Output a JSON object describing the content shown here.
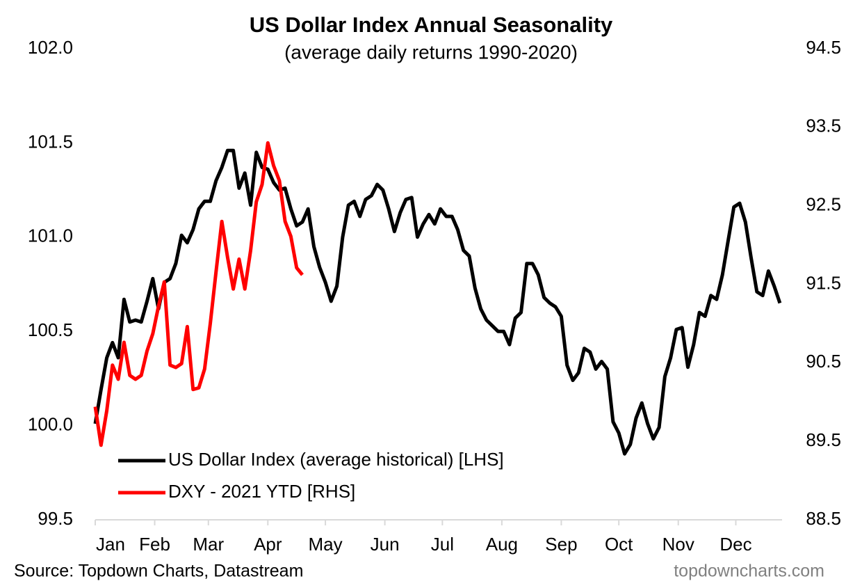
{
  "chart_data": {
    "type": "line",
    "title": "US Dollar Index Annual Seasonality",
    "subtitle": "(average daily returns 1990-2020)",
    "source": "Source: Topdown Charts, Datastream",
    "watermark": "topdowncharts.com",
    "legend": "lower left",
    "xlim": [
      0,
      365
    ],
    "xticks": [
      {
        "value": 0,
        "label": "Jan"
      },
      {
        "value": 31,
        "label": "Feb"
      },
      {
        "value": 59,
        "label": "Mar"
      },
      {
        "value": 90,
        "label": "Apr"
      },
      {
        "value": 120,
        "label": "May"
      },
      {
        "value": 151,
        "label": "Jun"
      },
      {
        "value": 181,
        "label": "Jul"
      },
      {
        "value": 212,
        "label": "Aug"
      },
      {
        "value": 243,
        "label": "Sep"
      },
      {
        "value": 273,
        "label": "Oct"
      },
      {
        "value": 304,
        "label": "Nov"
      },
      {
        "value": 334,
        "label": "Dec"
      }
    ],
    "ylim": [
      99.5,
      102.0
    ],
    "yticks": [
      99.5,
      {
        "value": 100,
        "label": "100.0"
      },
      100.5,
      {
        "value": 101,
        "label": "101.0"
      },
      101.5,
      {
        "value": 102,
        "label": "102.0"
      }
    ],
    "y2lim": [
      88.5,
      94.5
    ],
    "y2ticks": [
      88.5,
      89.5,
      90.5,
      91.5,
      92.5,
      93.5,
      94.5
    ],
    "series": [
      {
        "name": "US Dollar Index (average historical) [LHS]",
        "color": "#000000",
        "axis": "y",
        "x": [
          0,
          3,
          6,
          9,
          12,
          15,
          18,
          21,
          24,
          27,
          30,
          33,
          36,
          39,
          42,
          45,
          48,
          51,
          54,
          57,
          60,
          63,
          66,
          69,
          72,
          75,
          78,
          81,
          84,
          87,
          90,
          93,
          96,
          99,
          102,
          105,
          108,
          111,
          114,
          117,
          120,
          123,
          126,
          129,
          132,
          135,
          138,
          141,
          144,
          147,
          150,
          153,
          156,
          159,
          162,
          165,
          168,
          171,
          174,
          177,
          180,
          183,
          186,
          189,
          192,
          195,
          198,
          201,
          204,
          207,
          210,
          213,
          216,
          219,
          222,
          225,
          228,
          231,
          234,
          237,
          240,
          243,
          246,
          249,
          252,
          255,
          258,
          261,
          264,
          267,
          270,
          273,
          276,
          279,
          282,
          285,
          288,
          291,
          294,
          297,
          300,
          303,
          306,
          309,
          312,
          315,
          318,
          321,
          324,
          327,
          330,
          333,
          336,
          339,
          342,
          345,
          348,
          351,
          354,
          357
        ],
        "values": [
          100.01,
          100.19,
          100.36,
          100.44,
          100.36,
          100.67,
          100.55,
          100.56,
          100.55,
          100.66,
          100.78,
          100.62,
          100.76,
          100.78,
          100.86,
          101.01,
          100.97,
          101.04,
          101.15,
          101.19,
          101.19,
          101.3,
          101.37,
          101.46,
          101.46,
          101.26,
          101.34,
          101.17,
          101.45,
          101.37,
          101.36,
          101.29,
          101.25,
          101.26,
          101.15,
          101.06,
          101.08,
          101.15,
          100.95,
          100.84,
          100.76,
          100.66,
          100.74,
          101.0,
          101.17,
          101.19,
          101.11,
          101.2,
          101.22,
          101.28,
          101.25,
          101.15,
          101.03,
          101.13,
          101.2,
          101.21,
          101.0,
          101.07,
          101.12,
          101.07,
          101.15,
          101.11,
          101.11,
          101.04,
          100.93,
          100.9,
          100.73,
          100.62,
          100.56,
          100.53,
          100.5,
          100.5,
          100.43,
          100.57,
          100.6,
          100.86,
          100.86,
          100.8,
          100.68,
          100.65,
          100.63,
          100.58,
          100.32,
          100.24,
          100.28,
          100.41,
          100.39,
          100.3,
          100.34,
          100.3,
          100.02,
          99.96,
          99.85,
          99.9,
          100.04,
          100.12,
          100.01,
          99.93,
          99.99,
          100.26,
          100.36,
          100.51,
          100.52,
          100.31,
          100.43,
          100.6,
          100.58,
          100.69,
          100.67,
          100.8,
          100.98,
          101.16,
          101.18,
          101.08,
          100.89,
          100.71,
          100.69,
          100.82,
          100.74,
          100.65
        ]
      },
      {
        "name": "DXY - 2021 YTD [RHS]",
        "color": "#ff0000",
        "axis": "y2",
        "x": [
          0,
          3,
          6,
          9,
          12,
          15,
          18,
          21,
          24,
          27,
          30,
          33,
          36,
          39,
          42,
          45,
          48,
          51,
          54,
          57,
          60,
          63,
          66,
          69,
          72,
          75,
          78,
          81,
          84,
          87,
          90,
          93,
          96,
          99,
          102,
          105,
          108
        ],
        "values": [
          89.94,
          89.45,
          89.89,
          90.47,
          90.29,
          90.76,
          90.34,
          90.29,
          90.34,
          90.65,
          90.87,
          91.22,
          91.53,
          90.47,
          90.44,
          90.49,
          90.96,
          90.16,
          90.18,
          90.42,
          91.0,
          91.66,
          92.3,
          91.84,
          91.44,
          91.82,
          91.44,
          91.93,
          92.55,
          92.77,
          93.3,
          93.01,
          92.82,
          92.3,
          92.11,
          91.71,
          91.62
        ]
      }
    ]
  }
}
